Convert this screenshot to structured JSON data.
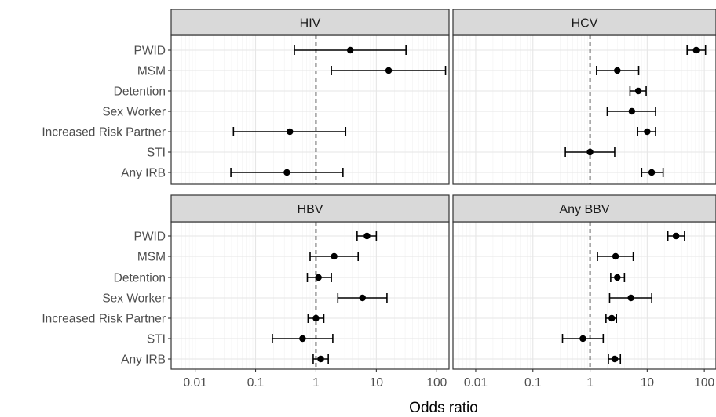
{
  "chart_data": {
    "type": "forest",
    "xlabel": "Odds ratio",
    "ylabel": "",
    "x_scale": "log10",
    "xlim": [
      0.004,
      160
    ],
    "x_ticks": [
      0.01,
      0.1,
      1,
      10,
      100
    ],
    "x_tick_labels": [
      "0.01",
      "0.1",
      "1",
      "10",
      "100"
    ],
    "reference_line": 1,
    "categories": [
      "PWID",
      "MSM",
      "Detention",
      "Sex Worker",
      "Increased Risk Partner",
      "STI",
      "Any IRB"
    ],
    "grid": true,
    "panels": [
      {
        "title": "HIV",
        "estimates": [
          {
            "label": "PWID",
            "or": 3.7,
            "lo": 0.44,
            "hi": 31
          },
          {
            "label": "MSM",
            "or": 16,
            "lo": 1.8,
            "hi": 140
          },
          {
            "label": "Increased Risk Partner",
            "or": 0.37,
            "lo": 0.043,
            "hi": 3.1
          },
          {
            "label": "Any IRB",
            "or": 0.33,
            "lo": 0.039,
            "hi": 2.8
          }
        ]
      },
      {
        "title": "HCV",
        "estimates": [
          {
            "label": "PWID",
            "or": 72,
            "lo": 50,
            "hi": 105
          },
          {
            "label": "MSM",
            "or": 3.0,
            "lo": 1.3,
            "hi": 7.1
          },
          {
            "label": "Detention",
            "or": 7.0,
            "lo": 5.0,
            "hi": 9.6
          },
          {
            "label": "Sex Worker",
            "or": 5.4,
            "lo": 2.0,
            "hi": 14
          },
          {
            "label": "Increased Risk Partner",
            "or": 10,
            "lo": 6.8,
            "hi": 14
          },
          {
            "label": "STI",
            "or": 1.0,
            "lo": 0.37,
            "hi": 2.7
          },
          {
            "label": "Any IRB",
            "or": 12,
            "lo": 8.0,
            "hi": 19
          }
        ]
      },
      {
        "title": "HBV",
        "estimates": [
          {
            "label": "PWID",
            "or": 7.0,
            "lo": 4.8,
            "hi": 10
          },
          {
            "label": "MSM",
            "or": 2.0,
            "lo": 0.8,
            "hi": 5.0
          },
          {
            "label": "Detention",
            "or": 1.1,
            "lo": 0.72,
            "hi": 1.8
          },
          {
            "label": "Sex Worker",
            "or": 5.9,
            "lo": 2.3,
            "hi": 15
          },
          {
            "label": "Increased Risk Partner",
            "or": 1.0,
            "lo": 0.74,
            "hi": 1.35
          },
          {
            "label": "STI",
            "or": 0.6,
            "lo": 0.19,
            "hi": 1.9
          },
          {
            "label": "Any IRB",
            "or": 1.2,
            "lo": 0.9,
            "hi": 1.6
          }
        ]
      },
      {
        "title": "Any BBV",
        "estimates": [
          {
            "label": "PWID",
            "or": 32,
            "lo": 23,
            "hi": 45
          },
          {
            "label": "MSM",
            "or": 2.8,
            "lo": 1.35,
            "hi": 5.7
          },
          {
            "label": "Detention",
            "or": 3.0,
            "lo": 2.3,
            "hi": 4.0
          },
          {
            "label": "Sex Worker",
            "or": 5.2,
            "lo": 2.2,
            "hi": 12
          },
          {
            "label": "Increased Risk Partner",
            "or": 2.4,
            "lo": 1.9,
            "hi": 2.9
          },
          {
            "label": "STI",
            "or": 0.75,
            "lo": 0.33,
            "hi": 1.7
          },
          {
            "label": "Any IRB",
            "or": 2.7,
            "lo": 2.1,
            "hi": 3.4
          }
        ]
      }
    ]
  }
}
